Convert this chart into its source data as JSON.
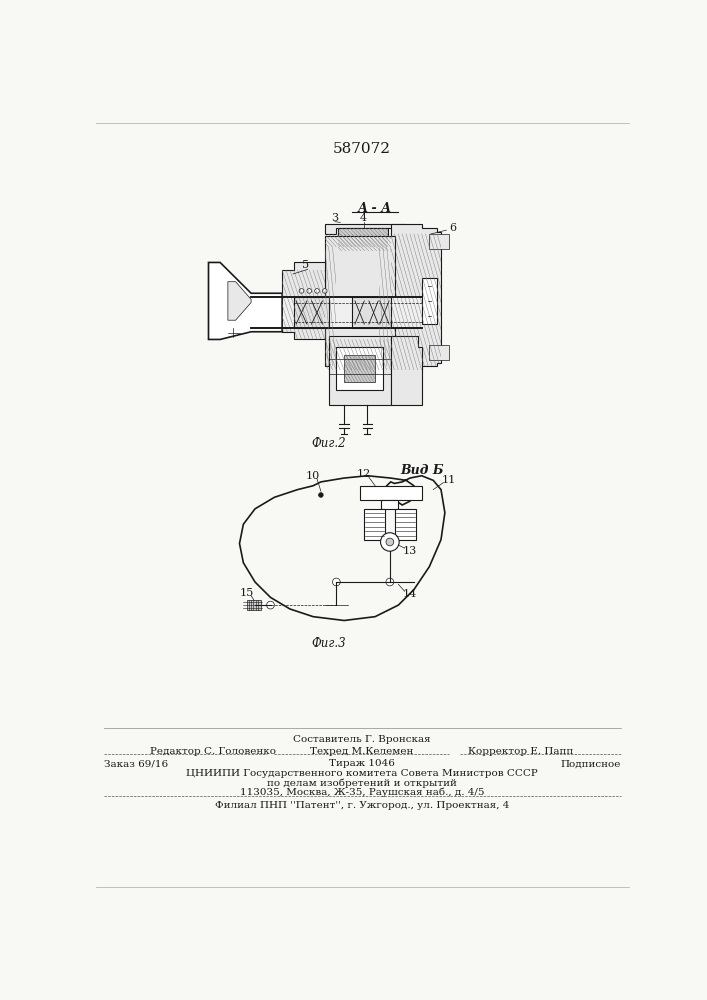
{
  "patent_number": "587072",
  "bg_color": "#f8f8f5",
  "fig_width": 7.07,
  "fig_height": 10.0,
  "fig2_label": "Фиг.2",
  "fig3_label": "Фиг.3",
  "view_a_label": "А - А",
  "view_b_label": "Вид Б",
  "footer_line1": "Составитель Г. Вронская",
  "footer_line2_left": "Редактор С. Головенко",
  "footer_line2_center": "Техред М.Келемен",
  "footer_line2_right": "Корректор Е. Папп",
  "footer_line3_left": "Заказ 69/16",
  "footer_line3_center": "Тираж 1046",
  "footer_line3_right": "Подписное",
  "footer_line4": "ЦНИИПИ Государственного комитета Совета Министров СССР",
  "footer_line5": "по делам изобретений и открытий",
  "footer_line6": "113035, Москва, Ж-35, Раушская наб., д. 4/5",
  "footer_line7": "Филиал ПНП ''Патент'', г. Ужгород., ул. Проектная, 4",
  "text_color": "#1a1a1a",
  "font_size_patent": 11,
  "font_size_footer": 7.5,
  "font_size_labels": 8
}
